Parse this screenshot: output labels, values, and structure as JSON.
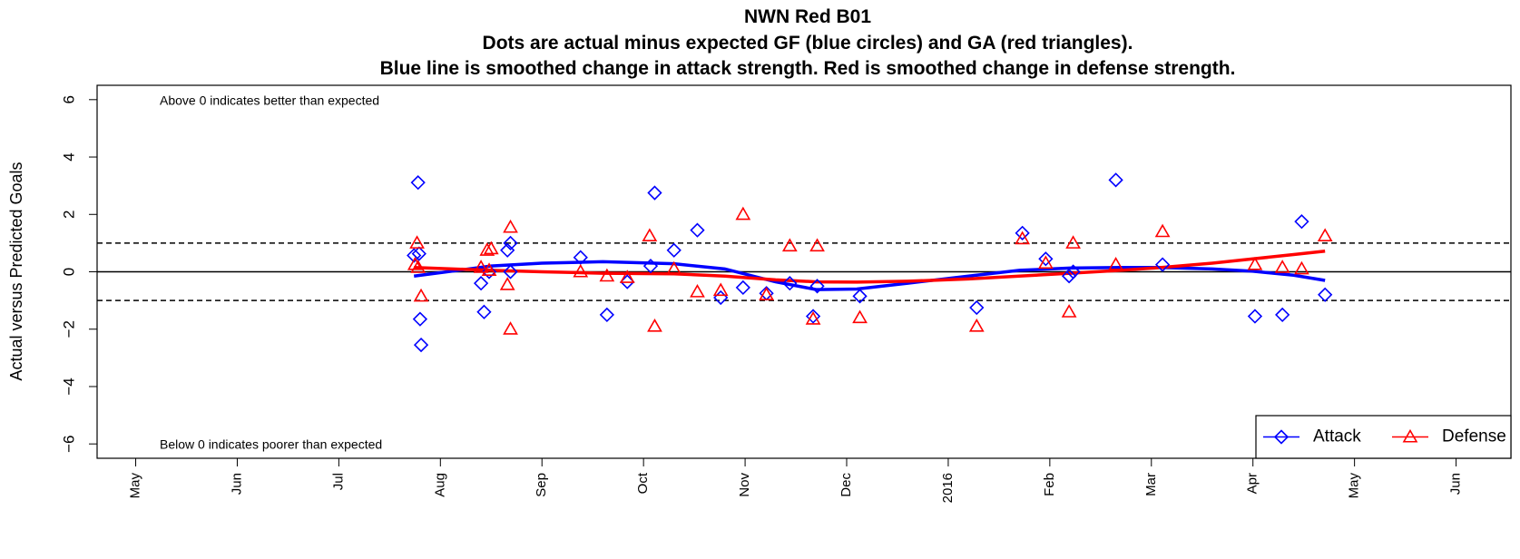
{
  "chart_data": {
    "type": "scatter",
    "title": "NWN Red B01",
    "subtitle": [
      "Dots are actual minus expected GF (blue circles) and GA (red triangles).",
      "Blue line is smoothed change in attack strength. Red is smoothed change in defense strength."
    ],
    "ylabel": "Actual versus Predicted Goals",
    "annotations": [
      "Above 0 indicates better than expected",
      "Below 0 indicates poorer than expected"
    ],
    "xlim": [
      -0.38,
      13.54
    ],
    "xticks": [
      {
        "value": 0,
        "label": "May"
      },
      {
        "value": 1,
        "label": "Jun"
      },
      {
        "value": 2,
        "label": "Jul"
      },
      {
        "value": 3,
        "label": "Aug"
      },
      {
        "value": 4,
        "label": "Sep"
      },
      {
        "value": 5,
        "label": "Oct"
      },
      {
        "value": 6,
        "label": "Nov"
      },
      {
        "value": 7,
        "label": "Dec"
      },
      {
        "value": 8,
        "label": "2016"
      },
      {
        "value": 9,
        "label": "Feb"
      },
      {
        "value": 10,
        "label": "Mar"
      },
      {
        "value": 11,
        "label": "Apr"
      },
      {
        "value": 12,
        "label": "May"
      },
      {
        "value": 13,
        "label": "Jun"
      }
    ],
    "ylim": [
      -6.5,
      6.5
    ],
    "yticks": [
      {
        "value": -6,
        "label": "−6"
      },
      {
        "value": -4,
        "label": "−4"
      },
      {
        "value": -2,
        "label": "−2"
      },
      0,
      2,
      4,
      6
    ],
    "hlines": [
      {
        "value": 0,
        "style": "solid"
      },
      {
        "value": 1,
        "style": "dashed"
      },
      {
        "value": -1,
        "style": "dashed"
      }
    ],
    "legend_position": "bottom-right",
    "series": [
      {
        "name": "Attack",
        "color": "#0000ff",
        "marker": "diamond",
        "x": [
          2.74,
          2.78,
          2.79,
          2.8,
          2.81,
          3.4,
          3.43,
          3.48,
          3.66,
          3.69,
          3.69,
          4.38,
          4.64,
          4.84,
          5.07,
          5.11,
          5.3,
          5.53,
          5.76,
          5.98,
          6.21,
          6.44,
          6.67,
          6.71,
          7.13,
          8.28,
          8.73,
          8.96,
          9.19,
          9.23,
          9.65,
          10.11,
          11.02,
          11.29,
          11.48,
          11.71
        ],
        "values": [
          0.57,
          3.11,
          0.63,
          -1.65,
          -2.55,
          -0.4,
          -1.4,
          0.0,
          0.75,
          1.0,
          0.0,
          0.5,
          -1.5,
          -0.35,
          0.2,
          2.75,
          0.75,
          1.45,
          -0.9,
          -0.55,
          -0.75,
          -0.4,
          -1.55,
          -0.5,
          -0.85,
          -1.25,
          1.35,
          0.45,
          -0.15,
          0.0,
          3.2,
          0.25,
          -1.55,
          -1.5,
          1.75,
          -0.8
        ]
      },
      {
        "name": "Defense",
        "color": "#ff0000",
        "marker": "triangle",
        "x": [
          2.75,
          2.77,
          2.78,
          2.81,
          3.4,
          3.46,
          3.48,
          3.5,
          3.66,
          3.69,
          3.69,
          4.38,
          4.64,
          4.84,
          5.06,
          5.11,
          5.3,
          5.53,
          5.76,
          5.98,
          6.21,
          6.44,
          6.67,
          6.71,
          7.13,
          8.28,
          8.73,
          8.96,
          9.19,
          9.23,
          9.65,
          10.11,
          11.02,
          11.29,
          11.48,
          11.71
        ],
        "values": [
          0.25,
          1.0,
          0.15,
          -0.85,
          0.15,
          0.75,
          0.05,
          0.8,
          -0.45,
          1.55,
          -2.0,
          0.0,
          -0.15,
          -0.2,
          1.25,
          -1.9,
          0.1,
          -0.7,
          -0.65,
          2.0,
          -0.8,
          0.9,
          -1.65,
          0.9,
          -1.6,
          -1.9,
          1.15,
          0.3,
          -1.4,
          1.0,
          0.25,
          1.4,
          0.25,
          0.15,
          0.1,
          1.25
        ]
      }
    ],
    "lines": [
      {
        "color": "#0000ff",
        "x": [
          2.74,
          3.5,
          4.0,
          4.6,
          5.3,
          5.8,
          6.3,
          6.7,
          7.1,
          7.6,
          8.2,
          8.7,
          9.2,
          9.7,
          10.1,
          10.6,
          11.0,
          11.4,
          11.71
        ],
        "values": [
          -0.15,
          0.2,
          0.3,
          0.35,
          0.28,
          0.1,
          -0.35,
          -0.62,
          -0.6,
          -0.4,
          -0.15,
          0.05,
          0.13,
          0.15,
          0.15,
          0.1,
          0.02,
          -0.12,
          -0.3
        ]
      },
      {
        "color": "#ff0000",
        "x": [
          2.74,
          3.5,
          4.0,
          4.6,
          5.3,
          5.8,
          6.3,
          6.7,
          7.1,
          7.6,
          8.2,
          8.7,
          9.2,
          9.7,
          10.1,
          10.6,
          11.0,
          11.4,
          11.71
        ],
        "values": [
          0.15,
          0.05,
          0.0,
          -0.05,
          -0.07,
          -0.15,
          -0.28,
          -0.35,
          -0.36,
          -0.33,
          -0.25,
          -0.15,
          -0.05,
          0.05,
          0.15,
          0.3,
          0.45,
          0.6,
          0.72
        ]
      }
    ]
  }
}
